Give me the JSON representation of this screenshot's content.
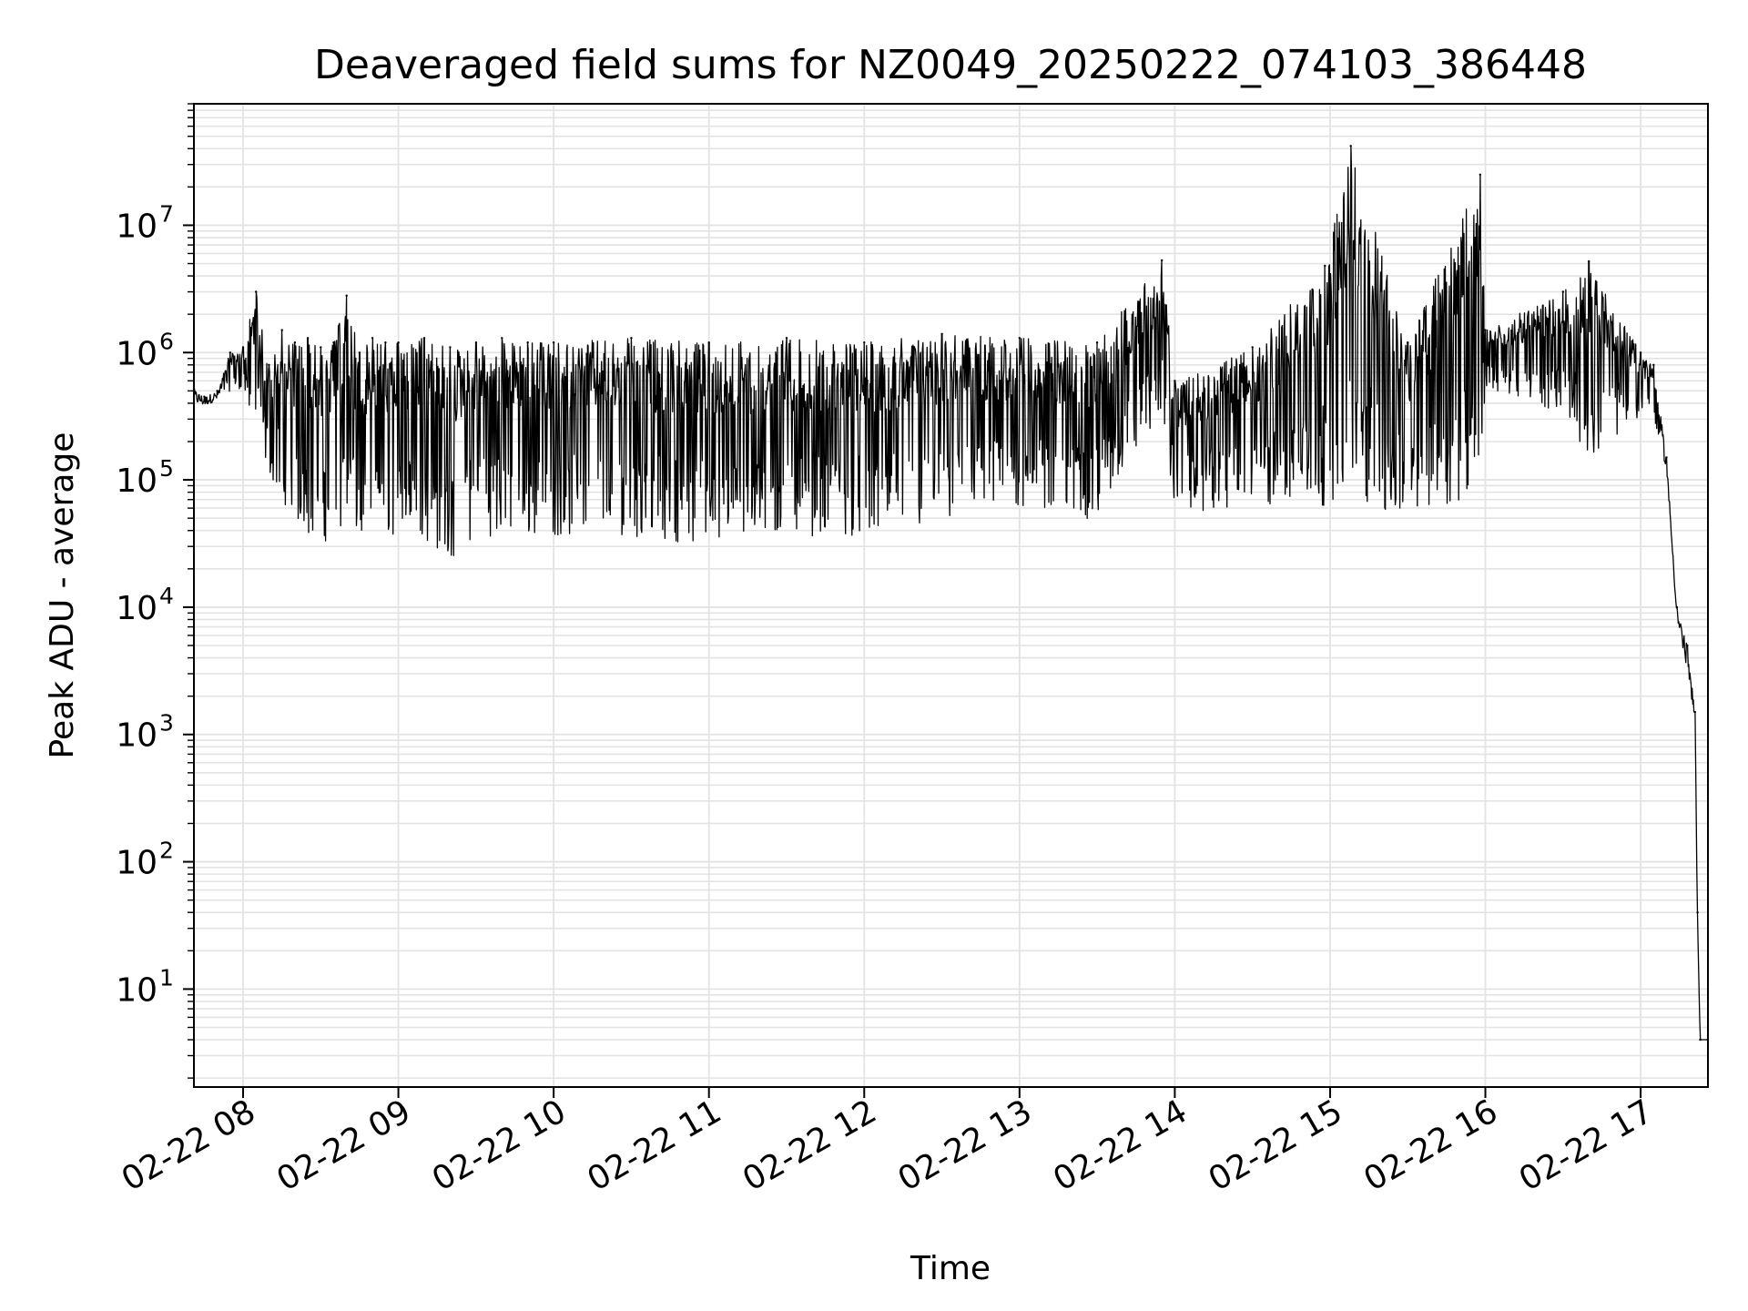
{
  "chart_data": {
    "type": "line",
    "title": "Deaveraged field sums for NZ0049_20250222_074103_386448",
    "xlabel": "Time",
    "ylabel": "Peak ADU - average",
    "yscale": "log",
    "grid": true,
    "line_color": "#000000",
    "grid_color": "#e3e3e3",
    "xlim": [
      "2025-02-22 07:41",
      "2025-02-22 17:26"
    ],
    "ylim": [
      1.7,
      90000000
    ],
    "x_ticks": [
      {
        "value": "2025-02-22 08:00",
        "label": "02-22 08"
      },
      {
        "value": "2025-02-22 09:00",
        "label": "02-22 09"
      },
      {
        "value": "2025-02-22 10:00",
        "label": "02-22 10"
      },
      {
        "value": "2025-02-22 11:00",
        "label": "02-22 11"
      },
      {
        "value": "2025-02-22 12:00",
        "label": "02-22 12"
      },
      {
        "value": "2025-02-22 13:00",
        "label": "02-22 13"
      },
      {
        "value": "2025-02-22 14:00",
        "label": "02-22 14"
      },
      {
        "value": "2025-02-22 15:00",
        "label": "02-22 15"
      },
      {
        "value": "2025-02-22 16:00",
        "label": "02-22 16"
      },
      {
        "value": "2025-02-22 17:00",
        "label": "02-22 17"
      }
    ],
    "y_ticks": [
      {
        "value": 10,
        "base": "10",
        "exp": "1"
      },
      {
        "value": 100,
        "base": "10",
        "exp": "2"
      },
      {
        "value": 1000,
        "base": "10",
        "exp": "3"
      },
      {
        "value": 10000,
        "base": "10",
        "exp": "4"
      },
      {
        "value": 100000,
        "base": "10",
        "exp": "5"
      },
      {
        "value": 1000000,
        "base": "10",
        "exp": "6"
      },
      {
        "value": 10000000,
        "base": "10",
        "exp": "7"
      }
    ],
    "series": [
      {
        "values_description_free": true,
        "x": [
          "2025-02-22 07:41",
          "2025-02-22 07:45",
          "2025-02-22 07:50",
          "2025-02-22 07:55",
          "2025-02-22 08:00",
          "2025-02-22 08:05",
          "2025-02-22 08:10",
          "2025-02-22 08:15",
          "2025-02-22 08:20",
          "2025-02-22 08:25",
          "2025-02-22 08:30",
          "2025-02-22 08:35",
          "2025-02-22 08:40",
          "2025-02-22 08:45",
          "2025-02-22 08:50",
          "2025-02-22 08:55",
          "2025-02-22 09:00",
          "2025-02-22 09:10",
          "2025-02-22 09:20",
          "2025-02-22 09:30",
          "2025-02-22 09:40",
          "2025-02-22 09:50",
          "2025-02-22 10:00",
          "2025-02-22 10:30",
          "2025-02-22 11:00",
          "2025-02-22 11:30",
          "2025-02-22 12:00",
          "2025-02-22 12:30",
          "2025-02-22 13:00",
          "2025-02-22 13:30",
          "2025-02-22 13:55",
          "2025-02-22 14:00",
          "2025-02-22 14:30",
          "2025-02-22 14:58",
          "2025-02-22 15:08",
          "2025-02-22 15:30",
          "2025-02-22 15:58",
          "2025-02-22 16:00",
          "2025-02-22 16:30",
          "2025-02-22 16:40",
          "2025-02-22 17:00",
          "2025-02-22 17:05",
          "2025-02-22 17:10",
          "2025-02-22 17:14",
          "2025-02-22 17:18",
          "2025-02-22 17:21",
          "2025-02-22 17:22",
          "2025-02-22 17:23",
          "2025-02-22 17:26"
        ],
        "values": [
          520000,
          450000,
          500000,
          1000000,
          1100000,
          3000000,
          800000,
          1500000,
          1200000,
          1300000,
          1100000,
          1200000,
          2800000,
          1000000,
          1300000,
          1200000,
          1200000,
          1300000,
          1100000,
          1200000,
          1300000,
          1200000,
          1200000,
          1300000,
          1200000,
          1300000,
          1200000,
          1400000,
          1300000,
          1200000,
          5300000,
          600000,
          1100000,
          4800000,
          42000000,
          1200000,
          25000000,
          1500000,
          3000000,
          5200000,
          1000000,
          800000,
          150000,
          10000,
          5000,
          1500,
          40,
          4,
          4
        ],
        "min_envelope": [
          400000,
          380000,
          420000,
          500000,
          500000,
          200000,
          100000,
          60000,
          40000,
          30000,
          28000,
          26000,
          30000,
          28000,
          30000,
          30000,
          30000,
          28000,
          18000,
          30000,
          30000,
          30000,
          30000,
          30000,
          25000,
          30000,
          30000,
          35000,
          50000,
          40000,
          300000,
          50000,
          50000,
          50000,
          50000,
          40000,
          60000,
          500000,
          300000,
          120000,
          300000,
          300000,
          120000,
          8000,
          3000,
          1200,
          30,
          4,
          4
        ]
      }
    ]
  }
}
